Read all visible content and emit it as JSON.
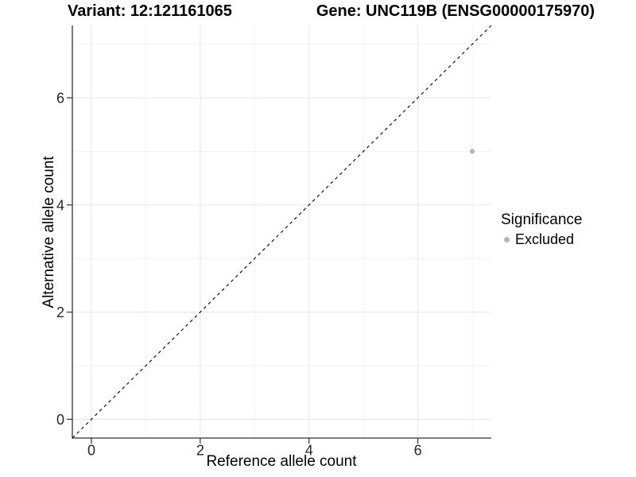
{
  "chart_data": {
    "type": "scatter",
    "title_left": "Variant: 12:121161065",
    "title_right": "Gene: UNC119B (ENSG00000175970)",
    "xlabel": "Reference allele count",
    "ylabel": "Alternative allele count",
    "xlim": [
      -0.35,
      7.35
    ],
    "ylim": [
      -0.35,
      7.35
    ],
    "x_ticks": [
      0,
      2,
      4,
      6
    ],
    "y_ticks": [
      0,
      2,
      4,
      6
    ],
    "x_minor_breaks": [
      1,
      3,
      5,
      7
    ],
    "y_minor_breaks": [
      1,
      3,
      5,
      7
    ],
    "grid": "major+minor on white background",
    "reference_line": {
      "kind": "identity y=x",
      "style": "dashed",
      "color": "#000000"
    },
    "series": [
      {
        "name": "Excluded",
        "color": "#b5b5b5",
        "point_radius": 3.1,
        "points": [
          {
            "x": 7,
            "y": 5
          }
        ]
      }
    ],
    "legend": {
      "position": "right",
      "title": "Significance",
      "entries": [
        {
          "label": "Excluded",
          "color": "#b5b5b5"
        }
      ]
    },
    "colors": {
      "grid_major": "#e7e7e7",
      "grid_minor": "#f2f2f2",
      "axis_line": "#333333",
      "tick_mark": "#333333",
      "tick_label": "#262626"
    }
  }
}
